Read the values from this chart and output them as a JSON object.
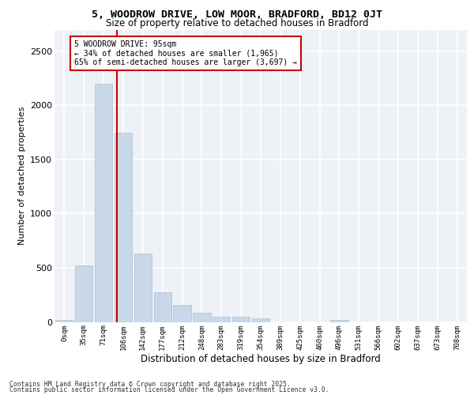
{
  "title_line1": "5, WOODROW DRIVE, LOW MOOR, BRADFORD, BD12 0JT",
  "title_line2": "Size of property relative to detached houses in Bradford",
  "xlabel": "Distribution of detached houses by size in Bradford",
  "ylabel": "Number of detached properties",
  "categories": [
    "0sqm",
    "35sqm",
    "71sqm",
    "106sqm",
    "142sqm",
    "177sqm",
    "212sqm",
    "248sqm",
    "283sqm",
    "319sqm",
    "354sqm",
    "389sqm",
    "425sqm",
    "460sqm",
    "496sqm",
    "531sqm",
    "566sqm",
    "602sqm",
    "637sqm",
    "673sqm",
    "708sqm"
  ],
  "values": [
    20,
    520,
    2200,
    1750,
    630,
    275,
    155,
    85,
    45,
    45,
    35,
    0,
    0,
    0,
    20,
    0,
    0,
    0,
    0,
    0,
    0
  ],
  "bar_color": "#c8d8e8",
  "bar_edgecolor": "#a8c0d0",
  "vline_color": "#cc0000",
  "annotation_text": "5 WOODROW DRIVE: 95sqm\n← 34% of detached houses are smaller (1,965)\n65% of semi-detached houses are larger (3,697) →",
  "annotation_box_color": "#cc0000",
  "ylim": [
    0,
    2700
  ],
  "yticks": [
    0,
    500,
    1000,
    1500,
    2000,
    2500
  ],
  "background_color": "#eef2f7",
  "grid_color": "#ffffff",
  "footer_line1": "Contains HM Land Registry data © Crown copyright and database right 2025.",
  "footer_line2": "Contains public sector information licensed under the Open Government Licence v3.0."
}
